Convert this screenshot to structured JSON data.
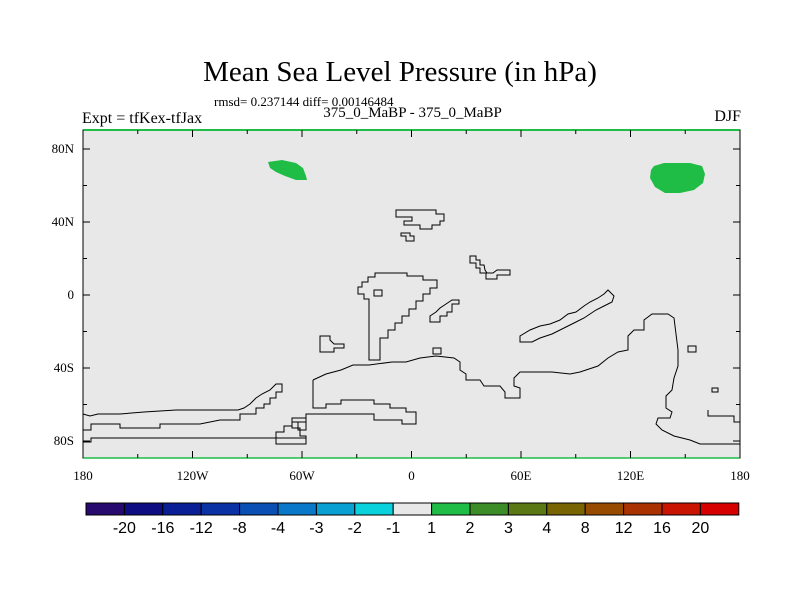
{
  "figure": {
    "title": "Mean Sea Level Pressure (in hPa)",
    "stats_line": "rmsd= 0.237144 diff= 0.00146484",
    "subtitle": "375_0_MaBP - 375_0_MaBP",
    "left_label": "Expt = tfKex-tfJax",
    "right_label": "DJF"
  },
  "map": {
    "background_color": "#e8e8e8",
    "coastline_color": "#000000",
    "x_ticks": [
      "180",
      "120W",
      "60W",
      "0",
      "60E",
      "120E",
      "180"
    ],
    "y_ticks": [
      "80N",
      "40N",
      "0",
      "40S",
      "80S"
    ],
    "anomaly_regions": [
      {
        "name": "north-pacific-positive-anomaly",
        "lon_range": [
          -78,
          -58
        ],
        "lat_range": [
          64,
          75
        ],
        "level_range": "1 to 2",
        "color": "#1fbc46"
      },
      {
        "name": "siberia-positive-anomaly",
        "lon_range": [
          130,
          162
        ],
        "lat_range": [
          56,
          73
        ],
        "level_range": "1 to 2",
        "color": "#1fbc46"
      }
    ]
  },
  "colorbar": {
    "labels": [
      "-20",
      "-16",
      "-12",
      "-8",
      "-4",
      "-3",
      "-2",
      "-1",
      "1",
      "2",
      "3",
      "4",
      "8",
      "12",
      "16",
      "20"
    ],
    "colors": [
      "#280a6e",
      "#0e0e82",
      "#0a1e96",
      "#0a32a5",
      "#0a50b4",
      "#0a78c8",
      "#0aa0d2",
      "#0ad2dc",
      "#e8e8e8",
      "#1fbc46",
      "#3c8c28",
      "#5a7814",
      "#786400",
      "#964b00",
      "#aa3200",
      "#c81400",
      "#d70000"
    ]
  }
}
